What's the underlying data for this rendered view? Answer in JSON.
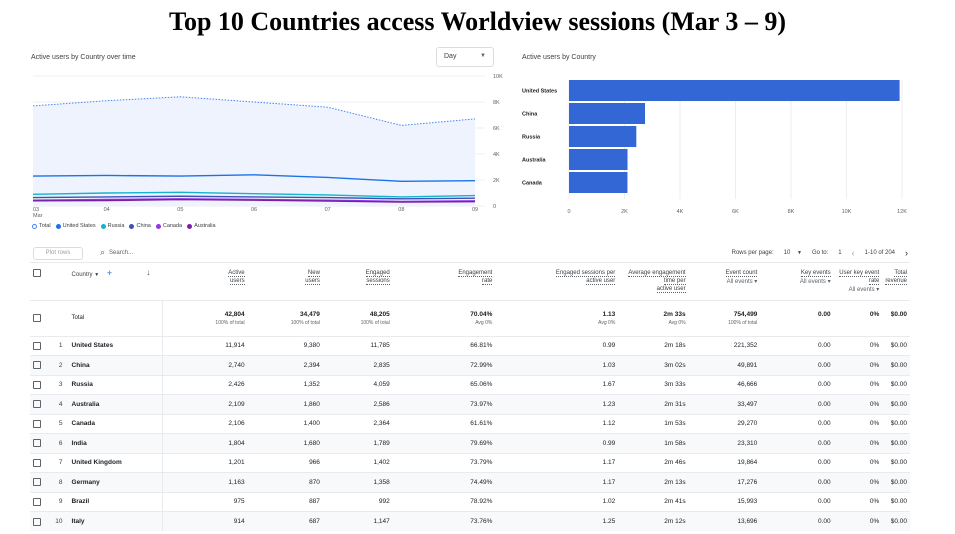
{
  "slide": {
    "title": "Top 10 Countries access Worldview sessions (Mar 3 – 9)"
  },
  "line_panel": {
    "title": "Active users by Country over time",
    "dropdown_value": "Day",
    "x_labels": [
      "03",
      "04",
      "05",
      "06",
      "07",
      "08",
      "09"
    ],
    "x_sublabel": "Mar",
    "y_labels": [
      "10K",
      "8K",
      "6K",
      "4K",
      "2K",
      "0"
    ],
    "legend": [
      {
        "label": "Total",
        "color": "#ffffff",
        "border": "#4285f4"
      },
      {
        "label": "United States",
        "color": "#1a73e8"
      },
      {
        "label": "Russia",
        "color": "#12b5cb"
      },
      {
        "label": "China",
        "color": "#3f51b5"
      },
      {
        "label": "Canada",
        "color": "#9334e6"
      },
      {
        "label": "Australia",
        "color": "#7b1fa2"
      }
    ]
  },
  "bar_panel": {
    "title": "Active users by Country",
    "x_labels": [
      "0",
      "2K",
      "4K",
      "6K",
      "8K",
      "10K",
      "12K"
    ],
    "bar_color": "#3367d6"
  },
  "chart_data": [
    {
      "type": "line",
      "x": [
        "Mar 03",
        "Mar 04",
        "Mar 05",
        "Mar 06",
        "Mar 07",
        "Mar 08",
        "Mar 09"
      ],
      "ylim": [
        0,
        10000
      ],
      "series": [
        {
          "name": "Total",
          "values": [
            7700,
            8100,
            8400,
            8000,
            7600,
            6200,
            6700
          ],
          "color": "#4285f4"
        },
        {
          "name": "United States",
          "values": [
            2300,
            2350,
            2300,
            2400,
            2200,
            1900,
            1950
          ],
          "color": "#1a73e8"
        },
        {
          "name": "Russia",
          "values": [
            900,
            1000,
            1050,
            950,
            850,
            700,
            800
          ],
          "color": "#12b5cb"
        },
        {
          "name": "China",
          "values": [
            650,
            700,
            750,
            700,
            650,
            550,
            600
          ],
          "color": "#3f51b5"
        },
        {
          "name": "Canada",
          "values": [
            450,
            500,
            550,
            500,
            450,
            350,
            400
          ],
          "color": "#9334e6"
        },
        {
          "name": "Australia",
          "values": [
            400,
            420,
            500,
            450,
            380,
            300,
            330
          ],
          "color": "#7b1fa2"
        }
      ]
    },
    {
      "type": "bar",
      "orientation": "horizontal",
      "categories": [
        "United States",
        "China",
        "Russia",
        "Australia",
        "Canada"
      ],
      "values": [
        11914,
        2740,
        2426,
        2109,
        2106
      ],
      "xlim": [
        0,
        12000
      ]
    }
  ],
  "toolbar": {
    "plot_rows": "Plot rows",
    "search_placeholder": "Search...",
    "rows_per_page_label": "Rows per page:",
    "rows_per_page_value": "10",
    "goto_label": "Go to:",
    "goto_value": "1",
    "range_text": "1-10 of 204"
  },
  "table": {
    "headers": {
      "country": "Country",
      "active_users": [
        "Active",
        "users"
      ],
      "new_users": [
        "New",
        "users"
      ],
      "engaged_sessions": [
        "Engaged",
        "sessions"
      ],
      "engagement_rate": [
        "Engagement",
        "rate"
      ],
      "engaged_per_user": [
        "Engaged sessions per",
        "active user"
      ],
      "avg_time": [
        "Average engagement time per",
        "active user"
      ],
      "event_count": [
        "Event count",
        "All events"
      ],
      "key_events": [
        "Key events",
        "All events"
      ],
      "user_key_rate": [
        "User key event",
        "rate",
        "All events"
      ],
      "revenue": [
        "Total",
        "revenue"
      ]
    },
    "total": {
      "label": "Total",
      "active_users": "42,804",
      "active_users_sub": "100% of total",
      "new_users": "34,479",
      "new_users_sub": "100% of total",
      "engaged_sessions": "48,205",
      "engaged_sessions_sub": "100% of total",
      "engagement_rate": "70.04%",
      "engagement_rate_sub": "Avg 0%",
      "engaged_per_user": "1.13",
      "engaged_per_user_sub": "Avg 0%",
      "avg_time": "2m 33s",
      "avg_time_sub": "Avg 0%",
      "event_count": "754,499",
      "event_count_sub": "100% of total",
      "key_events": "0.00",
      "user_key_rate": "0%",
      "revenue": "$0.00"
    },
    "rows": [
      {
        "n": "1",
        "country": "United States",
        "active": "11,914",
        "new": "9,380",
        "engaged": "11,785",
        "rate": "66.81%",
        "per_user": "0.99",
        "time": "2m 18s",
        "events": "221,352",
        "key": "0.00",
        "ukr": "0%",
        "rev": "$0.00"
      },
      {
        "n": "2",
        "country": "China",
        "active": "2,740",
        "new": "2,394",
        "engaged": "2,835",
        "rate": "72.99%",
        "per_user": "1.03",
        "time": "3m 02s",
        "events": "49,891",
        "key": "0.00",
        "ukr": "0%",
        "rev": "$0.00"
      },
      {
        "n": "3",
        "country": "Russia",
        "active": "2,426",
        "new": "1,352",
        "engaged": "4,059",
        "rate": "65.06%",
        "per_user": "1.67",
        "time": "3m 33s",
        "events": "46,666",
        "key": "0.00",
        "ukr": "0%",
        "rev": "$0.00"
      },
      {
        "n": "4",
        "country": "Australia",
        "active": "2,109",
        "new": "1,860",
        "engaged": "2,586",
        "rate": "73.97%",
        "per_user": "1.23",
        "time": "2m 31s",
        "events": "33,497",
        "key": "0.00",
        "ukr": "0%",
        "rev": "$0.00"
      },
      {
        "n": "5",
        "country": "Canada",
        "active": "2,106",
        "new": "1,400",
        "engaged": "2,364",
        "rate": "61.61%",
        "per_user": "1.12",
        "time": "1m 53s",
        "events": "29,270",
        "key": "0.00",
        "ukr": "0%",
        "rev": "$0.00"
      },
      {
        "n": "6",
        "country": "India",
        "active": "1,804",
        "new": "1,680",
        "engaged": "1,789",
        "rate": "79.69%",
        "per_user": "0.99",
        "time": "1m 58s",
        "events": "23,310",
        "key": "0.00",
        "ukr": "0%",
        "rev": "$0.00"
      },
      {
        "n": "7",
        "country": "United Kingdom",
        "active": "1,201",
        "new": "966",
        "engaged": "1,402",
        "rate": "73.79%",
        "per_user": "1.17",
        "time": "2m 46s",
        "events": "19,864",
        "key": "0.00",
        "ukr": "0%",
        "rev": "$0.00"
      },
      {
        "n": "8",
        "country": "Germany",
        "active": "1,163",
        "new": "870",
        "engaged": "1,358",
        "rate": "74.49%",
        "per_user": "1.17",
        "time": "2m 13s",
        "events": "17,276",
        "key": "0.00",
        "ukr": "0%",
        "rev": "$0.00"
      },
      {
        "n": "9",
        "country": "Brazil",
        "active": "975",
        "new": "887",
        "engaged": "992",
        "rate": "78.92%",
        "per_user": "1.02",
        "time": "2m 41s",
        "events": "15,993",
        "key": "0.00",
        "ukr": "0%",
        "rev": "$0.00"
      },
      {
        "n": "10",
        "country": "Italy",
        "active": "914",
        "new": "687",
        "engaged": "1,147",
        "rate": "73.76%",
        "per_user": "1.25",
        "time": "2m 12s",
        "events": "13,696",
        "key": "0.00",
        "ukr": "0%",
        "rev": "$0.00"
      }
    ]
  }
}
